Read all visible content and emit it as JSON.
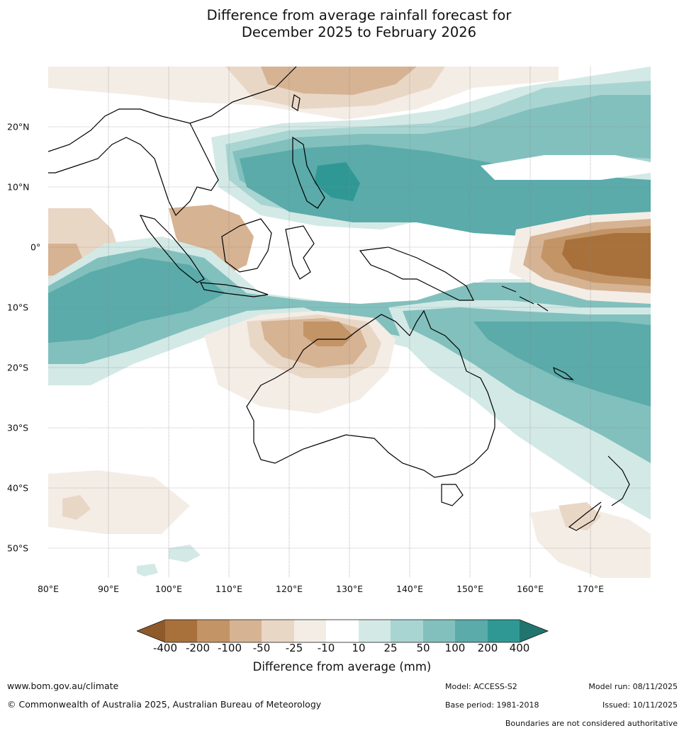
{
  "title": {
    "line1": "Difference from average rainfall forecast for",
    "line2": "December 2025 to February 2026"
  },
  "map": {
    "x_labels": [
      "80°E",
      "90°E",
      "100°E",
      "110°E",
      "120°E",
      "130°E",
      "140°E",
      "150°E",
      "160°E",
      "170°E"
    ],
    "y_labels": [
      "20°N",
      "10°N",
      "0°",
      "10°S",
      "20°S",
      "30°S",
      "40°S",
      "50°S"
    ],
    "colors": {
      "d400": "#a8703b",
      "d200": "#c39466",
      "d100": "#d6b393",
      "d50": "#e9d7c6",
      "d25": "#f4ede6",
      "neutral": "#ffffff",
      "w10": "#d3e9e6",
      "w25": "#a8d5d2",
      "w50": "#82c0bd",
      "w100": "#5aabaa",
      "w200": "#2f9894",
      "w400": "#21746f",
      "dmax": "#8e5a2a",
      "coast": "#000000",
      "border": "#888888"
    }
  },
  "colorbar": {
    "ticks": [
      "-400",
      "-200",
      "-100",
      "-50",
      "-25",
      "-10",
      "10",
      "25",
      "50",
      "100",
      "200",
      "400"
    ],
    "title": "Difference from average (mm)"
  },
  "footer": {
    "url": "www.bom.gov.au/climate",
    "copyright": "© Commonwealth of Australia 2025, Australian Bureau of Meteorology",
    "model": "Model: ACCESS-S2",
    "base_period": "Base period: 1981-2018",
    "model_run": "Model run: 08/11/2025",
    "issued": "Issued: 10/11/2025",
    "disclaimer": "Boundaries are not considered authoritative"
  }
}
